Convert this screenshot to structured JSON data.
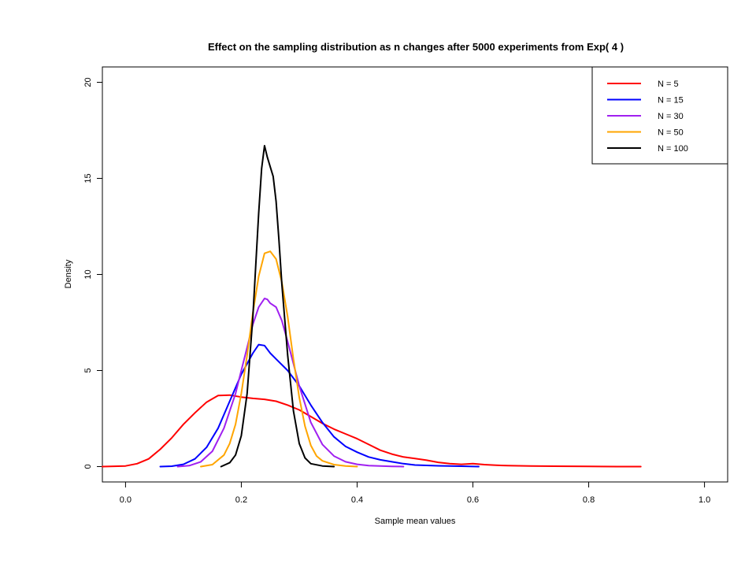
{
  "chart_data": {
    "type": "line",
    "title": "Effect on the sampling distribution as n changes after 5000 experiments from Exp( 4 )",
    "xlabel": "Sample mean values",
    "ylabel": "Density",
    "xlim": [
      -0.04,
      1.04
    ],
    "ylim": [
      -0.8,
      20.8
    ],
    "xticks": [
      "0.0",
      "0.2",
      "0.4",
      "0.6",
      "0.8",
      "1.0"
    ],
    "xtick_values": [
      0.0,
      0.2,
      0.4,
      0.6,
      0.8,
      1.0
    ],
    "yticks": [
      "0",
      "5",
      "10",
      "15",
      "20"
    ],
    "ytick_values": [
      0,
      5,
      10,
      15,
      20
    ],
    "grid": false,
    "legend_position": "top-right",
    "series": [
      {
        "name": "N = 5",
        "color": "#ff0000",
        "x": [
          -0.04,
          0.0,
          0.02,
          0.04,
          0.06,
          0.08,
          0.1,
          0.12,
          0.14,
          0.16,
          0.18,
          0.2,
          0.22,
          0.24,
          0.26,
          0.28,
          0.3,
          0.32,
          0.34,
          0.36,
          0.38,
          0.4,
          0.42,
          0.44,
          0.46,
          0.48,
          0.5,
          0.52,
          0.54,
          0.56,
          0.58,
          0.6,
          0.62,
          0.64,
          0.66,
          0.68,
          0.7,
          0.74,
          0.8,
          0.85,
          0.89
        ],
        "y": [
          0.0,
          0.03,
          0.15,
          0.4,
          0.9,
          1.5,
          2.2,
          2.8,
          3.35,
          3.7,
          3.72,
          3.62,
          3.55,
          3.5,
          3.4,
          3.2,
          2.95,
          2.6,
          2.25,
          1.95,
          1.7,
          1.45,
          1.15,
          0.85,
          0.65,
          0.5,
          0.42,
          0.33,
          0.22,
          0.15,
          0.12,
          0.15,
          0.1,
          0.07,
          0.05,
          0.04,
          0.03,
          0.02,
          0.01,
          0.0,
          0.0
        ]
      },
      {
        "name": "N = 15",
        "color": "#0000ff",
        "x": [
          0.06,
          0.08,
          0.1,
          0.12,
          0.14,
          0.16,
          0.18,
          0.2,
          0.22,
          0.23,
          0.24,
          0.25,
          0.26,
          0.28,
          0.3,
          0.32,
          0.34,
          0.36,
          0.38,
          0.4,
          0.42,
          0.44,
          0.46,
          0.48,
          0.5,
          0.54,
          0.58,
          0.61
        ],
        "y": [
          0.0,
          0.02,
          0.12,
          0.4,
          1.0,
          2.0,
          3.4,
          4.8,
          5.9,
          6.35,
          6.3,
          5.9,
          5.6,
          5.0,
          4.2,
          3.2,
          2.3,
          1.55,
          1.05,
          0.75,
          0.5,
          0.35,
          0.25,
          0.15,
          0.08,
          0.04,
          0.02,
          0.0
        ]
      },
      {
        "name": "N = 30",
        "color": "#a020f0",
        "x": [
          0.09,
          0.11,
          0.13,
          0.15,
          0.17,
          0.19,
          0.2,
          0.21,
          0.22,
          0.23,
          0.24,
          0.245,
          0.25,
          0.26,
          0.27,
          0.28,
          0.3,
          0.32,
          0.34,
          0.36,
          0.38,
          0.4,
          0.42,
          0.44,
          0.46,
          0.48
        ],
        "y": [
          0.0,
          0.05,
          0.25,
          0.8,
          2.0,
          3.8,
          5.0,
          6.2,
          7.4,
          8.3,
          8.75,
          8.7,
          8.5,
          8.3,
          7.6,
          6.5,
          4.2,
          2.3,
          1.15,
          0.55,
          0.25,
          0.12,
          0.05,
          0.03,
          0.01,
          0.0
        ]
      },
      {
        "name": "N = 50",
        "color": "#ffa500",
        "x": [
          0.13,
          0.15,
          0.17,
          0.18,
          0.19,
          0.2,
          0.21,
          0.22,
          0.23,
          0.24,
          0.25,
          0.26,
          0.27,
          0.28,
          0.29,
          0.3,
          0.31,
          0.32,
          0.33,
          0.34,
          0.36,
          0.38,
          0.4
        ],
        "y": [
          0.0,
          0.1,
          0.6,
          1.2,
          2.2,
          3.8,
          5.8,
          8.0,
          9.9,
          11.1,
          11.2,
          10.8,
          9.6,
          7.8,
          5.6,
          3.6,
          2.1,
          1.1,
          0.55,
          0.3,
          0.1,
          0.03,
          0.0
        ]
      },
      {
        "name": "N = 100",
        "color": "#000000",
        "x": [
          0.165,
          0.18,
          0.19,
          0.2,
          0.21,
          0.22,
          0.225,
          0.23,
          0.235,
          0.24,
          0.245,
          0.25,
          0.255,
          0.26,
          0.265,
          0.27,
          0.28,
          0.29,
          0.3,
          0.31,
          0.32,
          0.34,
          0.36
        ],
        "y": [
          0.0,
          0.2,
          0.6,
          1.6,
          3.8,
          7.8,
          10.5,
          13.2,
          15.5,
          16.7,
          16.1,
          15.6,
          15.1,
          13.8,
          11.8,
          9.5,
          5.8,
          2.9,
          1.2,
          0.45,
          0.15,
          0.03,
          0.0
        ]
      }
    ]
  }
}
